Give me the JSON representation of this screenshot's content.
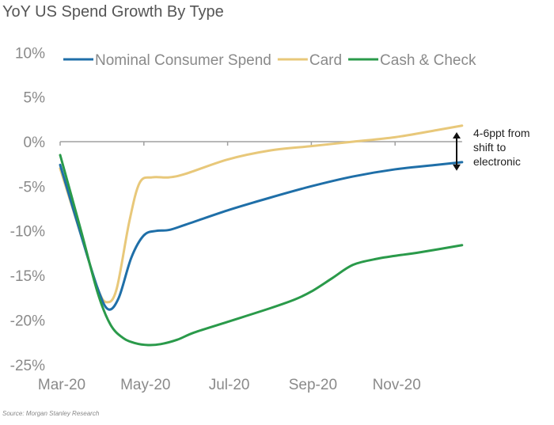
{
  "chart_data": {
    "type": "line",
    "title": "YoY US Spend Growth By Type",
    "xlabel": "",
    "ylabel": "",
    "ylim": [
      -25,
      10
    ],
    "yticks": [
      10,
      5,
      0,
      -5,
      -10,
      -15,
      -20,
      -25
    ],
    "ytick_labels": [
      "10%",
      "5%",
      "0%",
      "-5%",
      "-10%",
      "-15%",
      "-20%",
      "-25%"
    ],
    "xlim": [
      0,
      9.6
    ],
    "xticks": [
      0,
      2,
      4,
      6,
      8
    ],
    "xtick_labels": [
      "Mar-20",
      "May-20",
      "Jul-20",
      "Sep-20",
      "Nov-20"
    ],
    "x_unit": "months since Mar-20",
    "grid": false,
    "legend_position": "top",
    "series": [
      {
        "name": "Nominal Consumer Spend",
        "color": "#1f6fa8",
        "x": [
          0,
          0.5,
          0.9,
          1.15,
          1.4,
          1.7,
          2.0,
          2.3,
          2.6,
          3.0,
          4.0,
          5.0,
          6.0,
          7.0,
          8.0,
          9.0,
          9.6
        ],
        "y": [
          -2.6,
          -10.5,
          -16.5,
          -18.8,
          -17.5,
          -13.0,
          -10.5,
          -10.0,
          -9.9,
          -9.3,
          -7.7,
          -6.3,
          -5.0,
          -3.9,
          -3.1,
          -2.6,
          -2.3
        ]
      },
      {
        "name": "Card",
        "color": "#e8c87a",
        "x": [
          0,
          0.5,
          0.9,
          1.12,
          1.35,
          1.65,
          1.9,
          2.2,
          2.6,
          3.0,
          4.0,
          5.0,
          6.0,
          7.0,
          8.0,
          9.0,
          9.6
        ],
        "y": [
          -3.0,
          -10.5,
          -16.5,
          -18.0,
          -16.5,
          -9.0,
          -4.6,
          -4.0,
          -4.0,
          -3.6,
          -2.0,
          -1.0,
          -0.5,
          0.0,
          0.5,
          1.3,
          1.8
        ]
      },
      {
        "name": "Cash & Check",
        "color": "#2a9a4a",
        "x": [
          0,
          0.5,
          0.9,
          1.2,
          1.5,
          1.8,
          2.1,
          2.4,
          2.8,
          3.2,
          4.0,
          5.0,
          5.6,
          6.0,
          6.5,
          7.0,
          7.6,
          8.0,
          8.6,
          9.6
        ],
        "y": [
          -1.5,
          -10.0,
          -17.0,
          -20.5,
          -22.0,
          -22.6,
          -22.8,
          -22.7,
          -22.2,
          -21.4,
          -20.2,
          -18.7,
          -17.7,
          -16.8,
          -15.3,
          -13.8,
          -13.1,
          -12.8,
          -12.4,
          -11.6
        ]
      }
    ],
    "annotations": [
      {
        "text_lines": [
          "4-6ppt from",
          "shift to",
          "electronic"
        ],
        "arrow": "double-vertical",
        "x": 9.4,
        "y_range": [
          0,
          -3
        ]
      }
    ],
    "source": "Source: Morgan Stanley Research"
  }
}
